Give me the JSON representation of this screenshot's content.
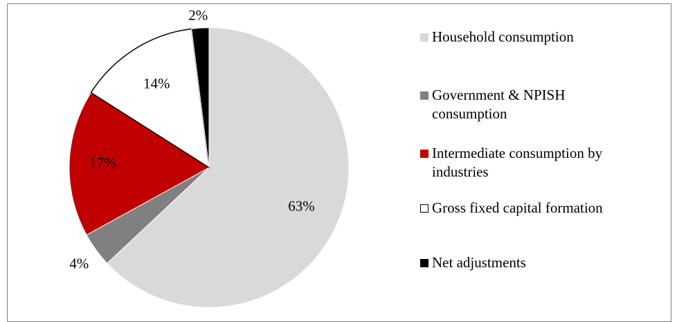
{
  "chart_data": {
    "type": "pie",
    "categories": [
      "Household consumption",
      "Government & NPISH consumption",
      "Intermediate consumption by industries",
      "Gross fixed capital formation",
      "Net adjustments"
    ],
    "values": [
      63,
      4,
      17,
      14,
      2
    ],
    "data_labels": [
      "63%",
      "4%",
      "17%",
      "14%",
      "2%"
    ],
    "colors": [
      "#d9d9d9",
      "#808080",
      "#c00000",
      "#ffffff",
      "#000000"
    ],
    "start_angle_deg": 0,
    "direction": "clockwise",
    "legend_position": "right"
  },
  "legend": {
    "items": [
      {
        "label": "Household consumption"
      },
      {
        "label_line1": "Government & NPISH",
        "label_line2": "consumption"
      },
      {
        "label_line1": "Intermediate consumption by",
        "label_line2": "industries"
      },
      {
        "label": "Gross fixed capital formation"
      },
      {
        "label": "Net adjustments"
      }
    ]
  }
}
